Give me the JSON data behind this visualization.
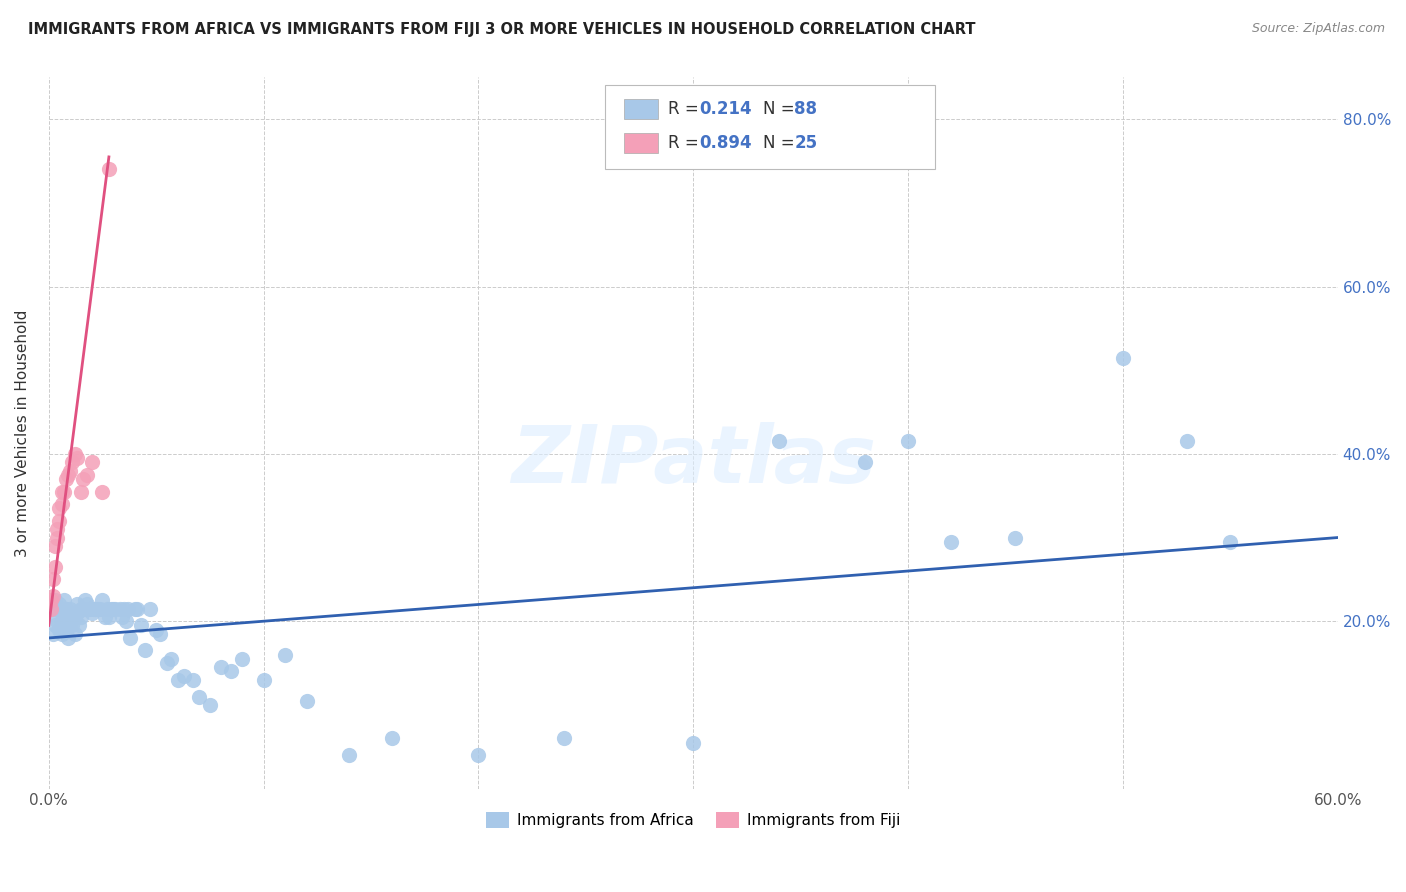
{
  "title": "IMMIGRANTS FROM AFRICA VS IMMIGRANTS FROM FIJI 3 OR MORE VEHICLES IN HOUSEHOLD CORRELATION CHART",
  "source": "Source: ZipAtlas.com",
  "ylabel": "3 or more Vehicles in Household",
  "xlim": [
    0.0,
    0.6
  ],
  "ylim": [
    0.0,
    0.85
  ],
  "xtick_positions": [
    0.0,
    0.1,
    0.2,
    0.3,
    0.4,
    0.5,
    0.6
  ],
  "xticklabels": [
    "0.0%",
    "",
    "",
    "",
    "",
    "",
    "60.0%"
  ],
  "ytick_positions": [
    0.0,
    0.2,
    0.4,
    0.6,
    0.8
  ],
  "ytick_labels_right": [
    "",
    "20.0%",
    "40.0%",
    "60.0%",
    "80.0%"
  ],
  "africa_color": "#a8c8e8",
  "fiji_color": "#f4a0b8",
  "africa_line_color": "#3060b0",
  "fiji_line_color": "#e05080",
  "label_color": "#4472c4",
  "R_africa": 0.214,
  "N_africa": 88,
  "R_fiji": 0.894,
  "N_fiji": 25,
  "watermark": "ZIPatlas",
  "africa_scatter_x": [
    0.001,
    0.002,
    0.002,
    0.003,
    0.003,
    0.003,
    0.004,
    0.004,
    0.005,
    0.005,
    0.005,
    0.006,
    0.006,
    0.006,
    0.007,
    0.007,
    0.007,
    0.008,
    0.008,
    0.009,
    0.009,
    0.01,
    0.01,
    0.011,
    0.011,
    0.012,
    0.012,
    0.013,
    0.013,
    0.014,
    0.015,
    0.015,
    0.016,
    0.017,
    0.018,
    0.018,
    0.019,
    0.02,
    0.021,
    0.022,
    0.023,
    0.024,
    0.025,
    0.026,
    0.027,
    0.028,
    0.029,
    0.03,
    0.031,
    0.033,
    0.034,
    0.035,
    0.036,
    0.037,
    0.038,
    0.04,
    0.041,
    0.043,
    0.045,
    0.047,
    0.05,
    0.052,
    0.055,
    0.057,
    0.06,
    0.063,
    0.067,
    0.07,
    0.075,
    0.08,
    0.085,
    0.09,
    0.1,
    0.11,
    0.12,
    0.14,
    0.16,
    0.2,
    0.24,
    0.3,
    0.34,
    0.38,
    0.4,
    0.42,
    0.45,
    0.5,
    0.53,
    0.55
  ],
  "africa_scatter_y": [
    0.22,
    0.185,
    0.215,
    0.195,
    0.215,
    0.225,
    0.2,
    0.215,
    0.19,
    0.215,
    0.22,
    0.185,
    0.2,
    0.21,
    0.205,
    0.215,
    0.225,
    0.195,
    0.215,
    0.18,
    0.21,
    0.195,
    0.215,
    0.195,
    0.21,
    0.185,
    0.205,
    0.21,
    0.22,
    0.195,
    0.215,
    0.205,
    0.215,
    0.225,
    0.215,
    0.22,
    0.215,
    0.21,
    0.215,
    0.215,
    0.215,
    0.215,
    0.225,
    0.205,
    0.215,
    0.205,
    0.215,
    0.215,
    0.215,
    0.215,
    0.205,
    0.215,
    0.2,
    0.215,
    0.18,
    0.215,
    0.215,
    0.195,
    0.165,
    0.215,
    0.19,
    0.185,
    0.15,
    0.155,
    0.13,
    0.135,
    0.13,
    0.11,
    0.1,
    0.145,
    0.14,
    0.155,
    0.13,
    0.16,
    0.105,
    0.04,
    0.06,
    0.04,
    0.06,
    0.055,
    0.415,
    0.39,
    0.415,
    0.295,
    0.3,
    0.515,
    0.415,
    0.295
  ],
  "fiji_scatter_x": [
    0.001,
    0.001,
    0.002,
    0.002,
    0.003,
    0.003,
    0.004,
    0.004,
    0.005,
    0.005,
    0.006,
    0.006,
    0.007,
    0.008,
    0.009,
    0.01,
    0.011,
    0.012,
    0.013,
    0.015,
    0.016,
    0.018,
    0.02,
    0.025,
    0.028
  ],
  "fiji_scatter_y": [
    0.215,
    0.225,
    0.23,
    0.25,
    0.265,
    0.29,
    0.3,
    0.31,
    0.32,
    0.335,
    0.34,
    0.355,
    0.355,
    0.37,
    0.375,
    0.38,
    0.39,
    0.4,
    0.395,
    0.355,
    0.37,
    0.375,
    0.39,
    0.355,
    0.74
  ],
  "africa_line_x": [
    0.0,
    0.6
  ],
  "africa_line_y": [
    0.18,
    0.3
  ],
  "fiji_line_x": [
    0.0,
    0.028
  ],
  "fiji_line_y": [
    0.195,
    0.755
  ]
}
